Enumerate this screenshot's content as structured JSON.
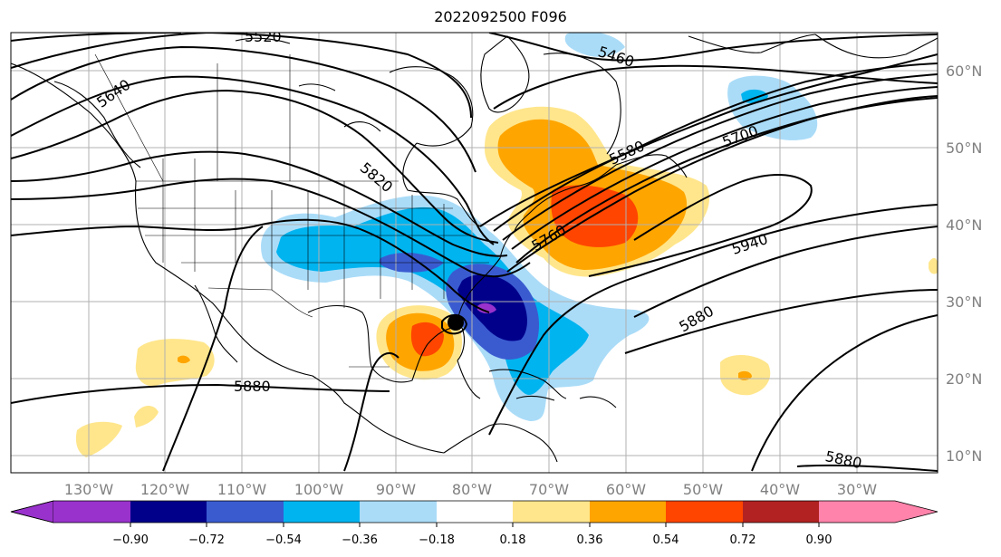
{
  "title": "2022092500 F096",
  "map": {
    "lon_labels": [
      "130°W",
      "120°W",
      "110°W",
      "100°W",
      "90°W",
      "80°W",
      "70°W",
      "60°W",
      "50°W",
      "40°W",
      "30°W"
    ],
    "lat_labels": [
      "60°N",
      "50°N",
      "40°N",
      "30°N",
      "20°N",
      "10°N"
    ],
    "contour_labels": [
      {
        "text": "5520"
      },
      {
        "text": "5640"
      },
      {
        "text": "5460"
      },
      {
        "text": "5700"
      },
      {
        "text": "5580"
      },
      {
        "text": "5820"
      },
      {
        "text": "5760"
      },
      {
        "text": "5940"
      },
      {
        "text": "5880"
      },
      {
        "text": "5880"
      },
      {
        "text": "5880"
      }
    ],
    "storm_marker": "hurricane-center"
  },
  "colorbar": {
    "colors": [
      "#9932cc",
      "#00008b",
      "#3a5bd0",
      "#00b4f0",
      "#aadcf8",
      "#ffffff",
      "#ffe68c",
      "#ffa500",
      "#ff4500",
      "#b22222",
      "#ff83ab"
    ],
    "ticks": [
      "−0.90",
      "−0.72",
      "−0.54",
      "−0.36",
      "−0.18",
      "0.18",
      "0.36",
      "0.54",
      "0.72",
      "0.90"
    ]
  }
}
